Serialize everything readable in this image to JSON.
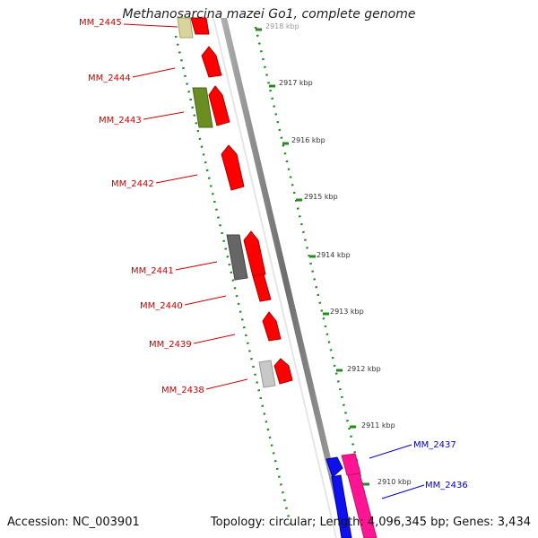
{
  "title": "Methanosarcina mazei Go1, complete genome",
  "footer": {
    "accession": "Accession: NC_003901",
    "summary": "Topology: circular; Length: 4,096,345 bp; Genes: 3,434"
  },
  "scale_labels": [
    {
      "label": "2918 kbp",
      "pos": 2918
    },
    {
      "label": "2917 kbp",
      "pos": 2917
    },
    {
      "label": "2916 kbp",
      "pos": 2916
    },
    {
      "label": "2915 kbp",
      "pos": 2915
    },
    {
      "label": "2914 kbp",
      "pos": 2914
    },
    {
      "label": "2913 kbp",
      "pos": 2913
    },
    {
      "label": "2912 kbp",
      "pos": 2912
    },
    {
      "label": "2911 kbp",
      "pos": 2911
    },
    {
      "label": "2910 kbp",
      "pos": 2910
    }
  ],
  "genes": [
    {
      "label": "MM_2445",
      "side": "left",
      "color": "#cc0000"
    },
    {
      "label": "MM_2444",
      "side": "left",
      "color": "#cc0000"
    },
    {
      "label": "MM_2443",
      "side": "left",
      "color": "#cc0000"
    },
    {
      "label": "MM_2442",
      "side": "left",
      "color": "#cc0000"
    },
    {
      "label": "MM_2441",
      "side": "left",
      "color": "#cc0000"
    },
    {
      "label": "MM_2440",
      "side": "left",
      "color": "#cc0000"
    },
    {
      "label": "MM_2439",
      "side": "left",
      "color": "#cc0000"
    },
    {
      "label": "MM_2438",
      "side": "left",
      "color": "#cc0000"
    },
    {
      "label": "MM_2437",
      "side": "right",
      "color": "#0000cc"
    },
    {
      "label": "MM_2436",
      "side": "right",
      "color": "#0000cc"
    }
  ],
  "colors": {
    "cds_red": "#ff0000",
    "cds_olive": "#6b8e23",
    "cds_khaki": "#d8d49a",
    "cds_dark_gray": "#666666",
    "cds_light_gray": "#c8c8c8",
    "cds_blue": "#1010ee",
    "cds_pink": "#ff1493",
    "backbone": "#808080",
    "tick_green": "#228b22"
  }
}
